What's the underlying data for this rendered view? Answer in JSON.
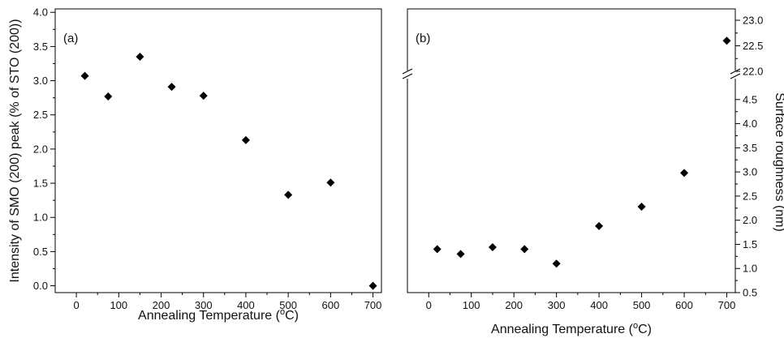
{
  "chart_data": [
    {
      "panel": "(a)",
      "type": "scatter",
      "marker": "diamond",
      "xlabel": "Annealing Temperature (°C)",
      "ylabel": "Intensity of SMO (200) peak (% of STO (200))",
      "xlim": [
        -50,
        720
      ],
      "ylim": [
        -0.1,
        4.05
      ],
      "xticks": [
        "0",
        "100",
        "200",
        "300",
        "400",
        "500",
        "600",
        "700"
      ],
      "yticks": [
        "0.0",
        "0.5",
        "1.0",
        "1.5",
        "2.0",
        "2.5",
        "3.0",
        "3.5",
        "4.0"
      ],
      "x": [
        20,
        75,
        150,
        225,
        300,
        400,
        500,
        600,
        700
      ],
      "y": [
        3.07,
        2.77,
        3.35,
        2.91,
        2.78,
        2.13,
        1.33,
        1.51,
        0.0
      ]
    },
    {
      "panel": "(b)",
      "type": "scatter",
      "marker": "diamond",
      "xlabel": "Annealing Temperature (°C)",
      "ylabel": "Surface roughness (nm)",
      "y_axis_side": "right",
      "axis_break": true,
      "xlim": [
        -50,
        720
      ],
      "ylim_lower": [
        0.5,
        4.95
      ],
      "ylim_upper": [
        22.0,
        23.0
      ],
      "xticks": [
        "0",
        "100",
        "200",
        "300",
        "400",
        "500",
        "600",
        "700"
      ],
      "yticks_lower": [
        "0.5",
        "1.0",
        "1.5",
        "2.0",
        "2.5",
        "3.0",
        "3.5",
        "4.0",
        "4.5"
      ],
      "yticks_upper": [
        "22.0",
        "22.5",
        "23.0"
      ],
      "x": [
        20,
        75,
        150,
        225,
        300,
        400,
        500,
        600,
        700
      ],
      "y": [
        1.4,
        1.3,
        1.44,
        1.4,
        1.1,
        1.88,
        2.28,
        2.98,
        22.6
      ]
    }
  ]
}
